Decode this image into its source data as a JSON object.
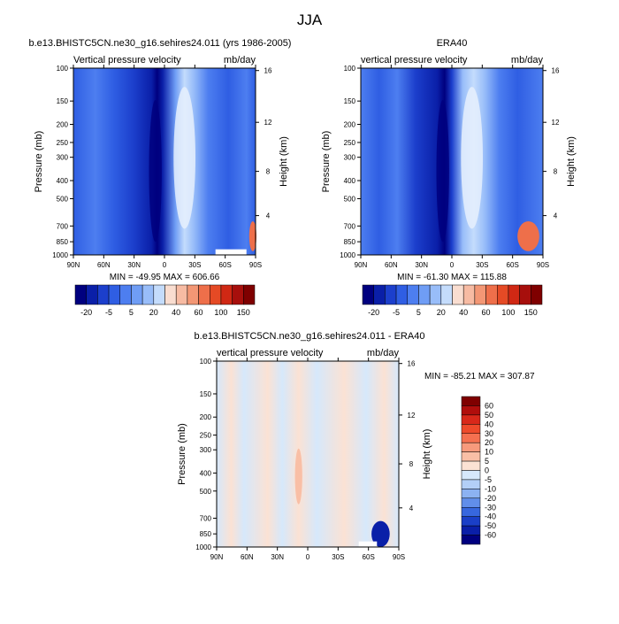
{
  "title": "JJA",
  "panels": [
    {
      "id": "model",
      "title": "b.e13.BHISTC5CN.ne30_g16.sehires24.011 (yrs 1986-2005)",
      "left_label": "Vertical pressure velocity",
      "right_label": "mb/day",
      "ylabel": "Pressure (mb)",
      "ylabel_right": "Height (km)",
      "minmax": "MIN = -49.95   MAX = 606.66"
    },
    {
      "id": "obs",
      "title": "ERA40",
      "left_label": "vertical pressure velocity",
      "right_label": "mb/day",
      "ylabel": "Pressure (mb)",
      "ylabel_right": "Height (km)",
      "minmax": "MIN = -61.30   MAX = 115.88"
    },
    {
      "id": "diff",
      "title": "b.e13.BHISTC5CN.ne30_g16.sehires24.011 - ERA40",
      "left_label": "vertical pressure velocity",
      "right_label": "mb/day",
      "ylabel": "Pressure (mb)",
      "ylabel_right": "Height (km)",
      "minmax": "MIN = -85.21  MAX = 307.87"
    }
  ],
  "colorbar_main": {
    "labels": [
      "-20",
      "-5",
      "5",
      "20",
      "40",
      "60",
      "100",
      "150"
    ],
    "colors": [
      "#00007f",
      "#0a1fa8",
      "#1c3fcc",
      "#2f5ee3",
      "#4d7ef0",
      "#6f9df5",
      "#98bdf9",
      "#c4dcfc",
      "#f9ddd0",
      "#f7bba3",
      "#f39775",
      "#ee6f4a",
      "#e54a25",
      "#d02814",
      "#a70f0c",
      "#7f0000"
    ]
  },
  "colorbar_diff": {
    "labels": [
      "60",
      "50",
      "40",
      "30",
      "20",
      "10",
      "5",
      "0",
      "-5",
      "-10",
      "-20",
      "-30",
      "-40",
      "-50",
      "-60"
    ],
    "colors": [
      "#7f0000",
      "#b00e0c",
      "#d8281a",
      "#ee4a2b",
      "#f57050",
      "#f79a7c",
      "#f9bfa6",
      "#fbe2d4",
      "#d6e8fb",
      "#b3cff7",
      "#8cb2f2",
      "#618eea",
      "#3767de",
      "#1a3fc7",
      "#0a1fa8",
      "#00007f"
    ]
  },
  "chart_data": {
    "type": "heatmap",
    "description_axes": "latitude-pressure cross section",
    "x_ticks": [
      "90N",
      "60N",
      "30N",
      "0",
      "30S",
      "60S",
      "90S"
    ],
    "y_ticks": [
      "100",
      "150",
      "200",
      "250",
      "300",
      "400",
      "500",
      "700",
      "850",
      "1000"
    ],
    "y_ticks_right": [
      "16",
      "12",
      "8",
      "4"
    ],
    "x_range": [
      90,
      -90
    ],
    "y_range_mb": [
      1000,
      100
    ],
    "y_scale": "log",
    "panels": [
      {
        "name": "b.e13.BHISTC5CN.ne30_g16.sehires24.011 (yrs 1986-2005)",
        "min": -49.95,
        "max": 606.66
      },
      {
        "name": "ERA40",
        "min": -61.3,
        "max": 115.88
      },
      {
        "name": "b.e13.BHISTC5CN.ne30_g16.sehires24.011 - ERA40",
        "min": -85.21,
        "max": 307.87
      }
    ]
  }
}
